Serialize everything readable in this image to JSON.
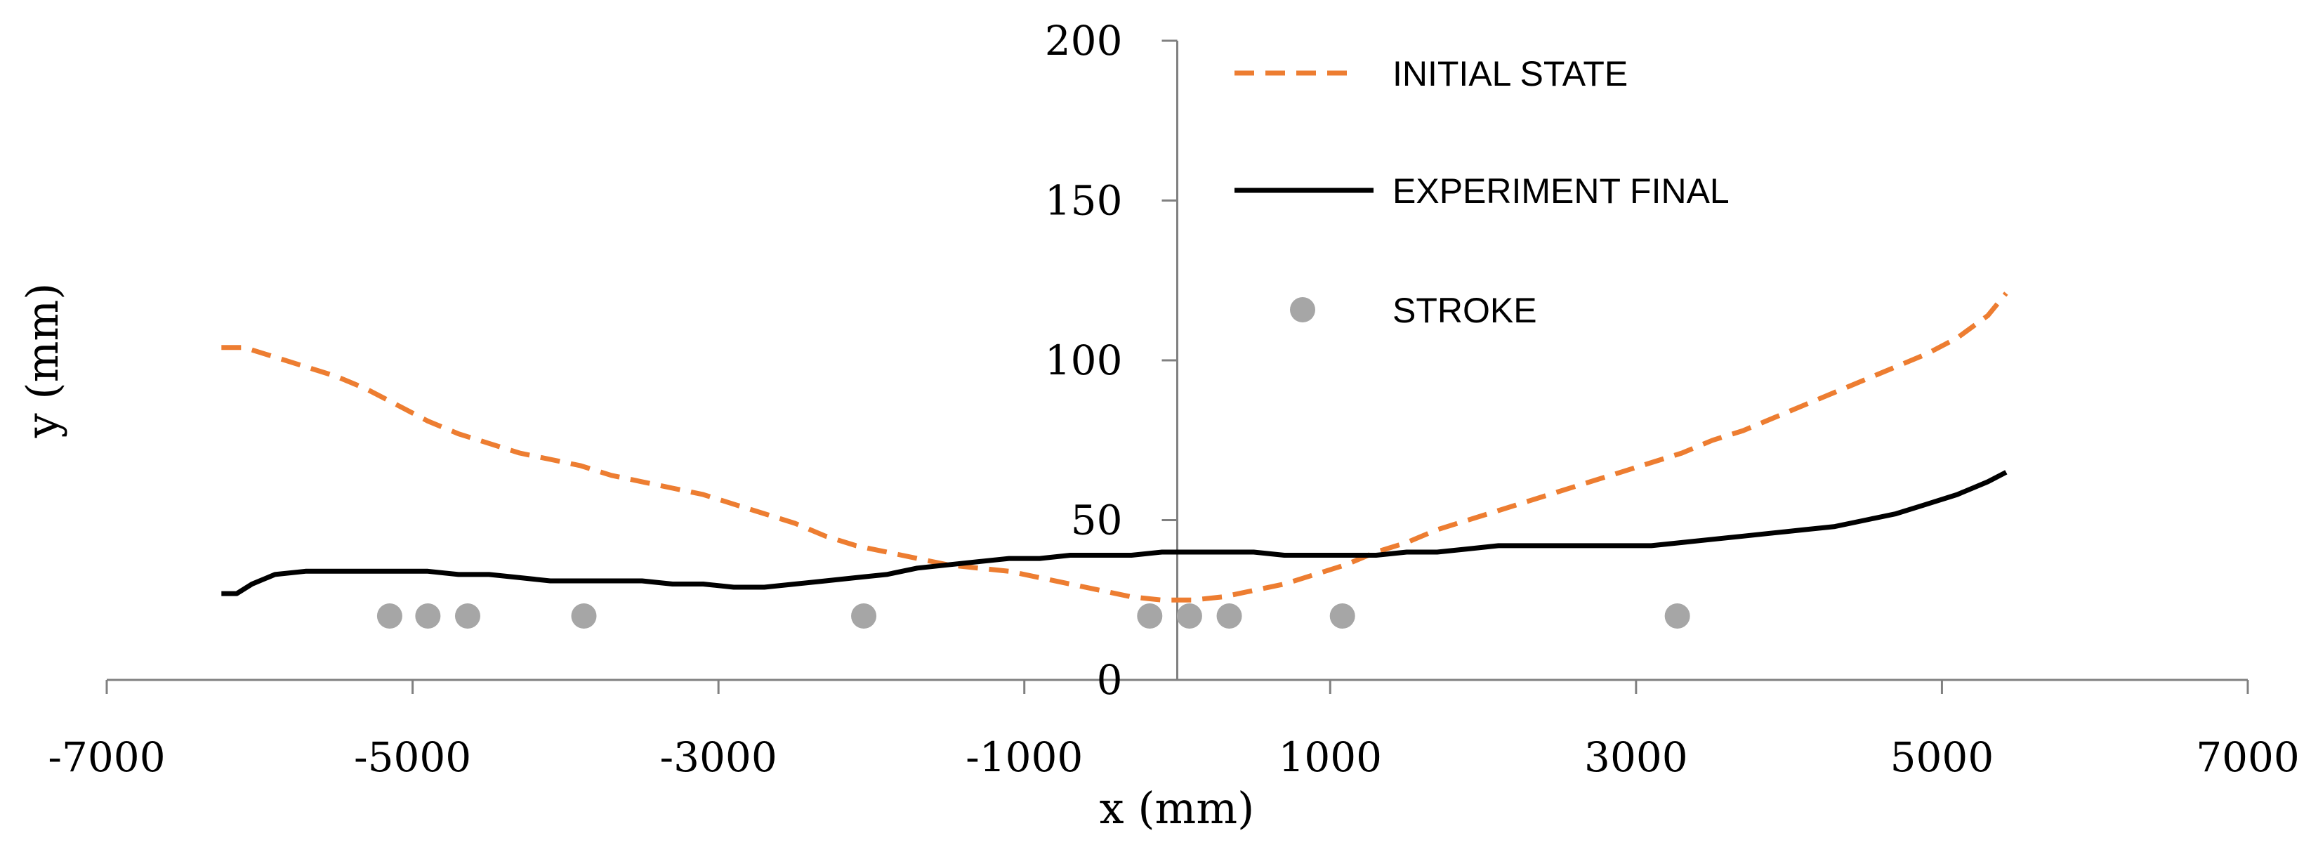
{
  "chart_data": {
    "type": "line",
    "title": "",
    "xlabel": "x (mm)",
    "ylabel": "y (mm)",
    "xlim": [
      -7000,
      7000
    ],
    "ylim": [
      0,
      200
    ],
    "xticks": [
      -7000,
      -5000,
      -3000,
      -1000,
      1000,
      3000,
      5000,
      7000
    ],
    "yticks": [
      0,
      50,
      100,
      150,
      200
    ],
    "xtick_labels": [
      "-7000",
      "-5000",
      "-3000",
      "-1000",
      "1000",
      "3000",
      "5000",
      "7000"
    ],
    "ytick_labels": [
      "0",
      "50",
      "100",
      "150",
      "200"
    ],
    "grid": false,
    "legend_position": "top-center",
    "series": [
      {
        "name": "INITIAL STATE",
        "style": "dashed",
        "color": "#ED7D31",
        "x": [
          -6250,
          -6100,
          -5900,
          -5700,
          -5500,
          -5300,
          -5100,
          -4900,
          -4700,
          -4500,
          -4300,
          -4100,
          -3900,
          -3700,
          -3500,
          -3300,
          -3100,
          -2900,
          -2700,
          -2500,
          -2300,
          -2100,
          -1900,
          -1700,
          -1500,
          -1300,
          -1100,
          -900,
          -700,
          -500,
          -300,
          -100,
          0,
          100,
          300,
          500,
          700,
          900,
          1100,
          1300,
          1500,
          1700,
          1900,
          2100,
          2300,
          2500,
          2700,
          2900,
          3100,
          3300,
          3500,
          3700,
          3900,
          4100,
          4300,
          4500,
          4700,
          4900,
          5100,
          5300,
          5420
        ],
        "y": [
          104,
          104,
          101,
          98,
          95,
          91,
          86,
          81,
          77,
          74,
          71,
          69,
          67,
          64,
          62,
          60,
          58,
          55,
          52,
          49,
          45,
          42,
          40,
          38,
          36,
          35,
          34,
          32,
          30,
          28,
          26,
          25,
          25,
          25,
          26,
          28,
          30,
          33,
          36,
          40,
          43,
          47,
          50,
          53,
          56,
          59,
          62,
          65,
          68,
          71,
          75,
          78,
          82,
          86,
          90,
          94,
          98,
          102,
          107,
          114,
          121
        ]
      },
      {
        "name": "EXPERIMENT FINAL",
        "style": "solid",
        "color": "#000000",
        "x": [
          -6250,
          -6150,
          -6050,
          -5900,
          -5700,
          -5500,
          -5300,
          -5100,
          -4900,
          -4700,
          -4500,
          -4300,
          -4100,
          -3900,
          -3700,
          -3500,
          -3300,
          -3100,
          -2900,
          -2700,
          -2500,
          -2300,
          -2100,
          -1900,
          -1700,
          -1500,
          -1300,
          -1100,
          -900,
          -700,
          -500,
          -300,
          -100,
          0,
          100,
          300,
          500,
          700,
          900,
          1100,
          1300,
          1500,
          1700,
          1900,
          2100,
          2300,
          2500,
          2700,
          2900,
          3100,
          3300,
          3500,
          3700,
          3900,
          4100,
          4300,
          4500,
          4700,
          4900,
          5100,
          5300,
          5420
        ],
        "y": [
          27,
          27,
          30,
          33,
          34,
          34,
          34,
          34,
          34,
          33,
          33,
          32,
          31,
          31,
          31,
          31,
          30,
          30,
          29,
          29,
          30,
          31,
          32,
          33,
          35,
          36,
          37,
          38,
          38,
          39,
          39,
          39,
          40,
          40,
          40,
          40,
          40,
          39,
          39,
          39,
          39,
          40,
          40,
          41,
          42,
          42,
          42,
          42,
          42,
          42,
          43,
          44,
          45,
          46,
          47,
          48,
          50,
          52,
          55,
          58,
          62,
          65
        ]
      },
      {
        "name": "STROKE",
        "style": "markers",
        "color": "#A6A6A6",
        "x": [
          -5150,
          -4900,
          -4640,
          -3880,
          -2050,
          -180,
          80,
          340,
          1080,
          3270
        ],
        "y": [
          20,
          20,
          20,
          20,
          20,
          20,
          20,
          20,
          20,
          20
        ]
      }
    ]
  }
}
